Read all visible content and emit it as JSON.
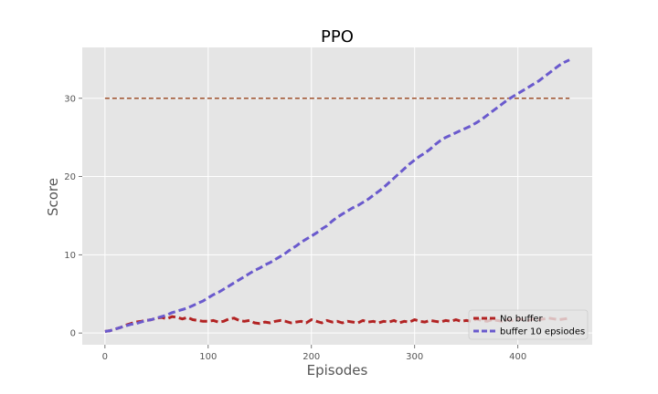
{
  "chart_data": {
    "type": "line",
    "title": "PPO",
    "xlabel": "Episodes",
    "ylabel": "Score",
    "xlim": [
      -22,
      472
    ],
    "ylim": [
      -1.5,
      36.5
    ],
    "xticks": [
      0,
      100,
      200,
      300,
      400
    ],
    "yticks": [
      0,
      10,
      20,
      30
    ],
    "grid": true,
    "legend_position": "lower-right",
    "threshold": {
      "y": 30,
      "x": [
        0,
        450
      ],
      "color": "#a0522d",
      "style": "dashed"
    },
    "series": [
      {
        "name": "No buffer",
        "color": "#b22222",
        "style": "dashed",
        "x": [
          0,
          5,
          10,
          15,
          20,
          25,
          30,
          35,
          40,
          45,
          50,
          55,
          60,
          65,
          70,
          75,
          80,
          85,
          90,
          95,
          100,
          105,
          110,
          115,
          120,
          125,
          130,
          135,
          140,
          145,
          150,
          155,
          160,
          165,
          170,
          175,
          180,
          185,
          190,
          195,
          200,
          205,
          210,
          215,
          220,
          225,
          230,
          235,
          240,
          245,
          250,
          255,
          260,
          265,
          270,
          275,
          280,
          285,
          290,
          295,
          300,
          305,
          310,
          315,
          320,
          325,
          330,
          335,
          340,
          345,
          350,
          355,
          360,
          365,
          370,
          375,
          380,
          385,
          390,
          395,
          400,
          405,
          410,
          415,
          420,
          425,
          430,
          435,
          440,
          445,
          450
        ],
        "values": [
          0.2,
          0.3,
          0.5,
          0.7,
          1.0,
          1.2,
          1.4,
          1.5,
          1.6,
          1.7,
          1.9,
          2.0,
          1.8,
          2.1,
          2.0,
          1.8,
          2.0,
          1.7,
          1.6,
          1.5,
          1.5,
          1.6,
          1.4,
          1.5,
          1.8,
          1.9,
          1.6,
          1.5,
          1.6,
          1.3,
          1.2,
          1.4,
          1.3,
          1.5,
          1.6,
          1.5,
          1.3,
          1.4,
          1.5,
          1.3,
          1.7,
          1.5,
          1.3,
          1.6,
          1.4,
          1.5,
          1.3,
          1.5,
          1.4,
          1.3,
          1.6,
          1.4,
          1.5,
          1.3,
          1.5,
          1.4,
          1.6,
          1.3,
          1.5,
          1.4,
          1.7,
          1.5,
          1.4,
          1.6,
          1.5,
          1.4,
          1.6,
          1.5,
          1.7,
          1.5,
          1.6,
          1.5,
          1.8,
          1.6,
          1.5,
          1.7,
          1.6,
          1.5,
          1.7,
          1.6,
          1.8,
          1.7,
          1.6,
          1.8,
          1.7,
          1.8,
          1.9,
          1.8,
          1.7,
          1.8,
          1.9
        ]
      },
      {
        "name": "buffer 10 epsiodes",
        "color": "#6a5acd",
        "style": "dashed",
        "x": [
          0,
          5,
          10,
          15,
          20,
          25,
          30,
          35,
          40,
          45,
          50,
          55,
          60,
          65,
          70,
          75,
          80,
          85,
          90,
          95,
          100,
          105,
          110,
          115,
          120,
          125,
          130,
          135,
          140,
          145,
          150,
          155,
          160,
          165,
          170,
          175,
          180,
          185,
          190,
          195,
          200,
          205,
          210,
          215,
          220,
          225,
          230,
          235,
          240,
          245,
          250,
          255,
          260,
          265,
          270,
          275,
          280,
          285,
          290,
          295,
          300,
          305,
          310,
          315,
          320,
          325,
          330,
          335,
          340,
          345,
          350,
          355,
          360,
          365,
          370,
          375,
          380,
          385,
          390,
          395,
          400,
          405,
          410,
          415,
          420,
          425,
          430,
          435,
          440,
          445,
          450
        ],
        "values": [
          0.2,
          0.3,
          0.5,
          0.7,
          0.9,
          1.1,
          1.2,
          1.4,
          1.6,
          1.7,
          1.9,
          2.1,
          2.3,
          2.6,
          2.8,
          3.0,
          3.2,
          3.5,
          3.8,
          4.1,
          4.5,
          4.9,
          5.2,
          5.6,
          6.0,
          6.4,
          6.8,
          7.2,
          7.6,
          8.0,
          8.3,
          8.7,
          9.0,
          9.4,
          9.8,
          10.2,
          10.7,
          11.1,
          11.6,
          12.0,
          12.4,
          12.8,
          13.3,
          13.7,
          14.3,
          14.8,
          15.2,
          15.6,
          16.0,
          16.3,
          16.7,
          17.1,
          17.6,
          18.1,
          18.6,
          19.2,
          19.8,
          20.4,
          21.0,
          21.6,
          22.1,
          22.6,
          23.0,
          23.5,
          24.1,
          24.6,
          25.0,
          25.3,
          25.6,
          25.9,
          26.2,
          26.5,
          26.9,
          27.3,
          27.8,
          28.3,
          28.8,
          29.3,
          29.8,
          30.2,
          30.6,
          31.0,
          31.4,
          31.8,
          32.2,
          32.7,
          33.2,
          33.7,
          34.2,
          34.6,
          34.9
        ]
      }
    ]
  }
}
